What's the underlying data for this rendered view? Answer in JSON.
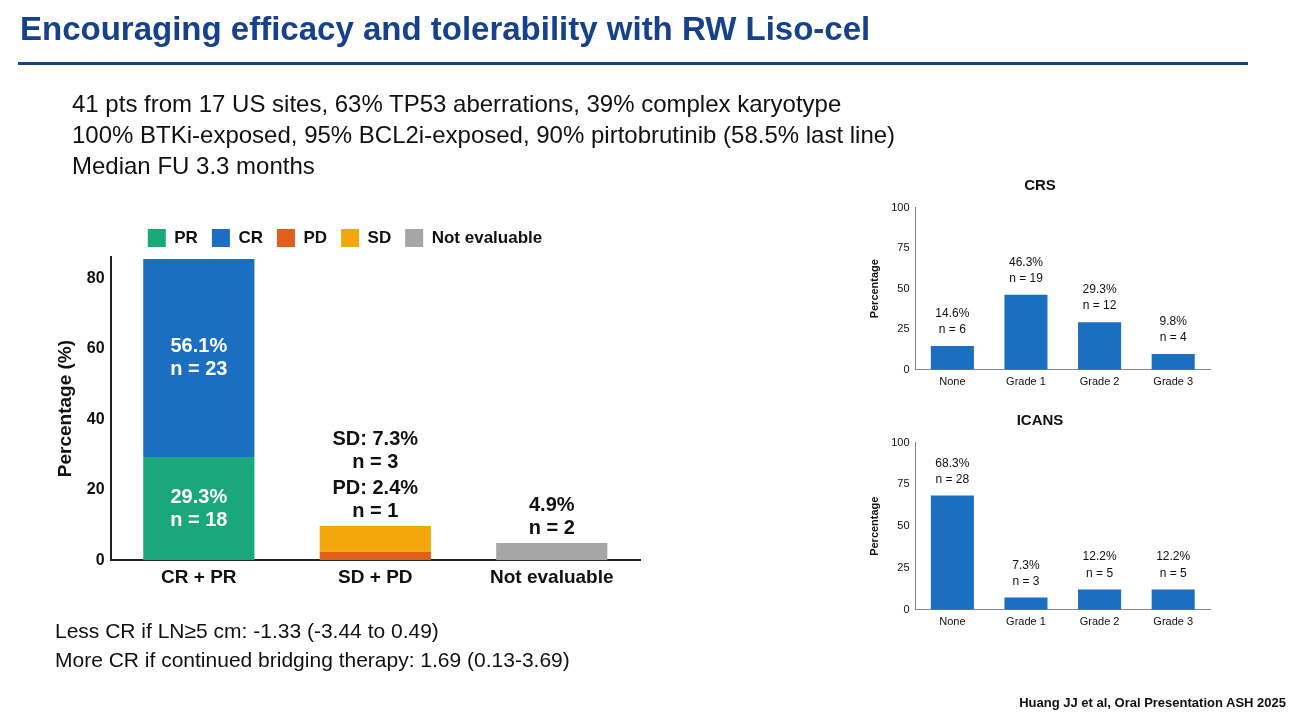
{
  "chart_data": [
    {
      "type": "bar",
      "title": "Encouraging efficacy and tolerability with RW Liso-cel",
      "subtitle": "41 pts from 17 US sites, 63% TP53 aberrations, 39% complex karyotype\n100% BTKi-exposed, 95% BCL2i-exposed, 90% pirtobrutinib (58.5% last line)\nMedian FU 3.3 months",
      "ylabel": "Percentage (%)",
      "categories": [
        "CR + PR",
        "SD + PD",
        "Not evaluable"
      ],
      "stacked": true,
      "legend": "top",
      "ylim": [
        0,
        86
      ],
      "yticks": [
        0,
        20,
        40,
        60,
        80
      ],
      "series": [
        {
          "name": "PR",
          "color": "#1aa77a",
          "values": [
            29.3,
            null,
            null
          ],
          "value_labels": [
            "29.3%\nn = 18",
            null,
            null
          ]
        },
        {
          "name": "CR",
          "color": "#1b6ec2",
          "values": [
            56.1,
            null,
            null
          ],
          "value_labels": [
            "56.1%\nn = 23",
            null,
            null
          ]
        },
        {
          "name": "PD",
          "color": "#e0601a",
          "values": [
            null,
            2.4,
            null
          ],
          "value_labels": [
            null,
            "PD: 2.4%\nn = 1",
            null
          ]
        },
        {
          "name": "SD",
          "color": "#f4a70a",
          "values": [
            null,
            7.3,
            null
          ],
          "value_labels": [
            null,
            "SD: 7.3%\nn = 3",
            null
          ]
        },
        {
          "name": "Not evaluable",
          "color": "#a6a6a6",
          "values": [
            null,
            null,
            4.9
          ],
          "value_labels": [
            null,
            null,
            "4.9%\nn = 2"
          ]
        }
      ],
      "annotations": [
        "Less CR if LN≥5 cm: -1.33 (-3.44 to 0.49)",
        "More CR if continued bridging therapy: 1.69 (0.13-3.69)",
        "Huang JJ et al, Oral Presentation ASH 2025"
      ]
    },
    {
      "type": "bar",
      "title": "CRS",
      "ylabel": "Percentage",
      "categories": [
        "None",
        "Grade 1",
        "Grade 2",
        "Grade 3"
      ],
      "color": "#1b6ec2",
      "ylim": [
        0,
        100
      ],
      "yticks": [
        0,
        25,
        50,
        75,
        100
      ],
      "values": [
        14.6,
        46.3,
        29.3,
        9.8
      ],
      "value_labels": [
        "14.6%\nn = 6",
        "46.3%\nn = 19",
        "29.3%\nn = 12",
        "9.8%\nn = 4"
      ]
    },
    {
      "type": "bar",
      "title": "ICANS",
      "ylabel": "Percentage",
      "categories": [
        "None",
        "Grade 1",
        "Grade 2",
        "Grade 3"
      ],
      "color": "#1b6ec2",
      "ylim": [
        0,
        100
      ],
      "yticks": [
        0,
        25,
        50,
        75,
        100
      ],
      "values": [
        68.3,
        7.3,
        12.2,
        12.2
      ],
      "value_labels": [
        "68.3%\nn = 28",
        "7.3%\nn = 3",
        "12.2%\nn = 5",
        "12.2%\nn = 5"
      ]
    }
  ]
}
